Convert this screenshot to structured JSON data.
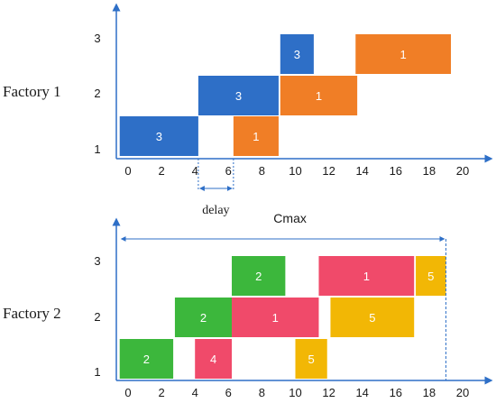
{
  "chart_data": [
    {
      "type": "gantt",
      "title": "Factory 1",
      "xticks": [
        "0",
        "2",
        "4",
        "6",
        "8",
        "10",
        "12",
        "14",
        "16",
        "18",
        "20"
      ],
      "xlim": [
        -1,
        21
      ],
      "machines": [
        "1",
        "2",
        "3"
      ],
      "operations": [
        {
          "job": "3",
          "machine": 1,
          "start": -0.5,
          "end": 4.2,
          "color": "blue"
        },
        {
          "job": "1",
          "machine": 1,
          "start": 6.3,
          "end": 9.0,
          "color": "orange"
        },
        {
          "job": "3",
          "machine": 2,
          "start": 4.2,
          "end": 9.0,
          "color": "blue"
        },
        {
          "job": "1",
          "machine": 2,
          "start": 9.1,
          "end": 13.7,
          "color": "orange"
        },
        {
          "job": "3",
          "machine": 3,
          "start": 9.1,
          "end": 11.1,
          "color": "blue"
        },
        {
          "job": "1",
          "machine": 3,
          "start": 13.6,
          "end": 19.3,
          "color": "orange"
        }
      ],
      "annotations": [
        {
          "text": "delay",
          "x_start": 4.2,
          "x_end": 6.3
        }
      ]
    },
    {
      "type": "gantt",
      "title": "Factory 2",
      "xticks": [
        "0",
        "2",
        "4",
        "6",
        "8",
        "10",
        "12",
        "14",
        "16",
        "18",
        "20"
      ],
      "xlim": [
        -1,
        21
      ],
      "machines": [
        "1",
        "2",
        "3"
      ],
      "operations": [
        {
          "job": "2",
          "machine": 1,
          "start": -0.5,
          "end": 2.7,
          "color": "green"
        },
        {
          "job": "4",
          "machine": 1,
          "start": 4.0,
          "end": 6.2,
          "color": "red"
        },
        {
          "job": "5",
          "machine": 1,
          "start": 10.0,
          "end": 11.9,
          "color": "yellow"
        },
        {
          "job": "2",
          "machine": 2,
          "start": 2.8,
          "end": 6.2,
          "color": "green"
        },
        {
          "job": "1",
          "machine": 2,
          "start": 6.2,
          "end": 11.4,
          "color": "red"
        },
        {
          "job": "5",
          "machine": 2,
          "start": 12.1,
          "end": 17.1,
          "color": "yellow"
        },
        {
          "job": "2",
          "machine": 3,
          "start": 6.2,
          "end": 9.4,
          "color": "green"
        },
        {
          "job": "1",
          "machine": 3,
          "start": 11.4,
          "end": 17.1,
          "color": "red"
        },
        {
          "job": "5",
          "machine": 3,
          "start": 17.2,
          "end": 19.0,
          "color": "yellow"
        }
      ],
      "annotations": [
        {
          "text": "Cmax",
          "x_start": -0.5,
          "x_end": 19.0
        }
      ]
    }
  ],
  "colors": {
    "blue": "#2e6fc7",
    "orange": "#f07e26",
    "green": "#3cb73c",
    "red": "#f04a6a",
    "yellow": "#f2b705",
    "axis": "#2e6fc7"
  }
}
